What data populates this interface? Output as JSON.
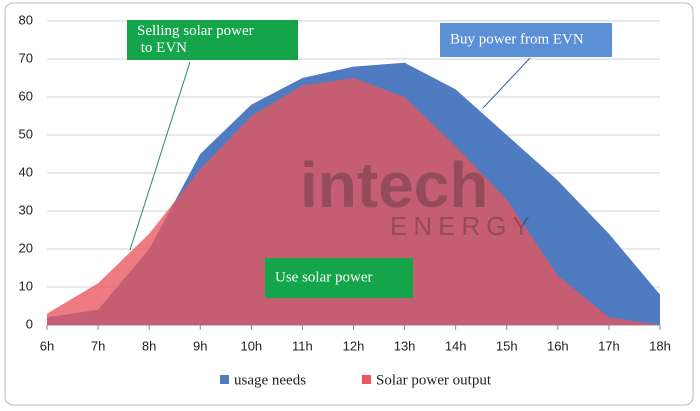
{
  "chart_data": {
    "type": "area",
    "categories": [
      "6h",
      "7h",
      "8h",
      "9h",
      "10h",
      "11h",
      "12h",
      "13h",
      "14h",
      "15h",
      "16h",
      "17h",
      "18h"
    ],
    "series": [
      {
        "name": "usage needs",
        "color": "#4f7cc0",
        "values": [
          2,
          4,
          20,
          45,
          58,
          65,
          68,
          69,
          62,
          50,
          38,
          24,
          8
        ]
      },
      {
        "name": "Solar power output",
        "color": "#e8565e",
        "values": [
          3,
          11,
          24,
          41,
          55,
          63,
          65,
          60,
          47,
          33,
          13,
          2,
          0
        ]
      }
    ],
    "ylim": [
      0,
      80
    ],
    "yticks": [
      0,
      10,
      20,
      30,
      40,
      50,
      60,
      70,
      80
    ],
    "grid": true,
    "legend": "bottom",
    "annotations": [
      {
        "lines": [
          "Selling solar power",
          " to EVN"
        ],
        "color": "#14a54a"
      },
      {
        "lines": [
          "Buy power from EVN"
        ],
        "color": "#5b8fd6"
      },
      {
        "lines": [
          "Use solar power"
        ],
        "color": "#14a54a"
      }
    ],
    "watermark": [
      "intech",
      "ENERGY"
    ]
  }
}
